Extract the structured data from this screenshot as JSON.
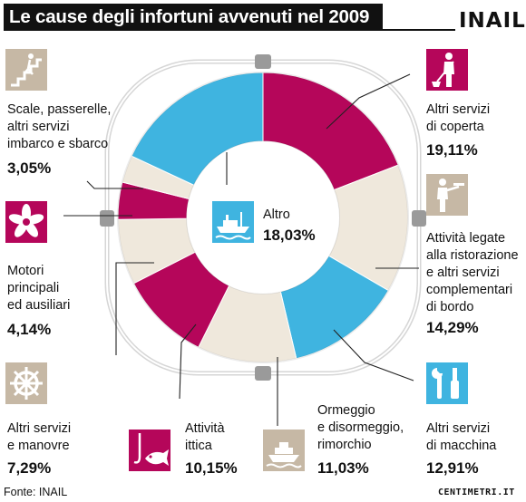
{
  "header": {
    "title": "Le cause degli infortuni avvenuti nel 2009",
    "brand": "INAIL"
  },
  "footer": {
    "source": "Fonte: INAIL",
    "signature": "CENTIMETRI.IT"
  },
  "colors": {
    "magenta": "#b5065a",
    "cyan": "#3fb4e0",
    "cream": "#efe8dc",
    "icon_magenta": "#b5065a",
    "icon_beige": "#c6b8a5",
    "icon_cyan": "#3fb4e0"
  },
  "chart_data": {
    "type": "pie",
    "style": "lifebuoy-ring",
    "unit": "%",
    "slices": [
      {
        "label": "Altri servizi di coperta",
        "value": 19.11,
        "value_label": "19,11%",
        "color": "#b5065a",
        "icon": "sweeper-icon"
      },
      {
        "label": "Attività legate alla ristorazione e altri servizi complementari di bordo",
        "value": 14.29,
        "value_label": "14,29%",
        "color": "#efe8dc",
        "icon": "waiter-icon"
      },
      {
        "label": "Altri servizi di macchina",
        "value": 12.91,
        "value_label": "12,91%",
        "color": "#3fb4e0",
        "icon": "tools-icon"
      },
      {
        "label": "Ormeggio e disormeggio, rimorchio",
        "value": 11.03,
        "value_label": "11,03%",
        "color": "#efe8dc",
        "icon": "ferry-icon"
      },
      {
        "label": "Attività ittica",
        "value": 10.15,
        "value_label": "10,15%",
        "color": "#b5065a",
        "icon": "fish-hook-icon"
      },
      {
        "label": "Altri servizi e manovre",
        "value": 7.29,
        "value_label": "7,29%",
        "color": "#efe8dc",
        "icon": "ship-wheel-icon"
      },
      {
        "label": "Motori principali ed ausiliari",
        "value": 4.14,
        "value_label": "4,14%",
        "color": "#b5065a",
        "icon": "propeller-icon"
      },
      {
        "label": "Scale, passerelle, altri servizi imbarco e sbarco",
        "value": 3.05,
        "value_label": "3,05%",
        "color": "#efe8dc",
        "icon": "stairs-icon"
      },
      {
        "label": "Altro",
        "value": 18.03,
        "value_label": "18,03%",
        "color": "#3fb4e0",
        "icon": "boat-icon"
      }
    ]
  },
  "labels": {
    "coperta": {
      "text": "Altri servizi\ndi coperta",
      "pct": "19,11%"
    },
    "ristorazione": {
      "text": "Attività legate\nalla ristorazione\ne altri servizi\ncomplementari\ndi bordo",
      "pct": "14,29%"
    },
    "macchina": {
      "text": "Altri servizi\ndi macchina",
      "pct": "12,91%"
    },
    "ormeggio": {
      "text": "Ormeggio\ne disormeggio,\nrimorchio",
      "pct": "11,03%"
    },
    "ittica": {
      "text": "Attività\nittica",
      "pct": "10,15%"
    },
    "manovre": {
      "text": "Altri servizi\ne manovre",
      "pct": "7,29%"
    },
    "motori": {
      "text": "Motori\nprincipali\ned ausiliari",
      "pct": "4,14%"
    },
    "scale": {
      "text": "Scale, passerelle,\naltri servizi\nimbarco e sbarco",
      "pct": "3,05%"
    },
    "altro": {
      "text": "Altro",
      "pct": "18,03%"
    }
  }
}
